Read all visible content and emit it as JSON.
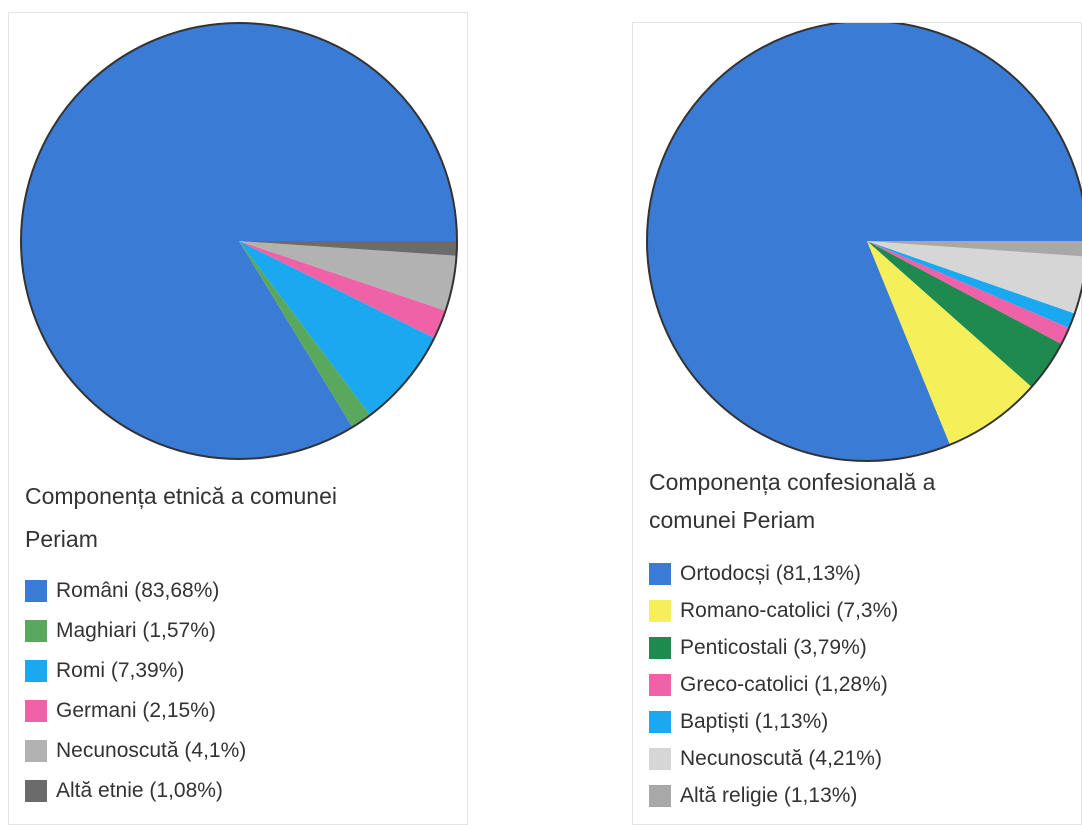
{
  "chart_data": [
    {
      "type": "pie",
      "title": "Componența etnică a comunei Periam",
      "categories": [
        "Români (83,68%)",
        "Maghiari (1,57%)",
        "Romi (7,39%)",
        "Germani (2,15%)",
        "Necunoscută (4,1%)",
        "Altă etnie (1,08%)"
      ],
      "values": [
        83.68,
        1.57,
        7.39,
        2.15,
        4.1,
        1.08
      ],
      "colors": [
        "#3a7bd5",
        "#5aa75e",
        "#1aa8f0",
        "#f062a8",
        "#b2b2b2",
        "#6b6b6b"
      ]
    },
    {
      "type": "pie",
      "title": "Componența confesională a comunei Periam",
      "categories": [
        "Ortodocși (81,13%)",
        "Romano-catolici (7,3%)",
        "Penticostali (3,79%)",
        "Greco-catolici (1,28%)",
        "Baptiști (1,13%)",
        "Necunoscută (4,21%)",
        "Altă religie (1,13%)"
      ],
      "values": [
        81.13,
        7.3,
        3.79,
        1.28,
        1.13,
        4.21,
        1.13
      ],
      "colors": [
        "#3a7bd5",
        "#f5f05a",
        "#1e8a50",
        "#f062a8",
        "#1aa8f0",
        "#d6d6d6",
        "#a8a8a8"
      ]
    }
  ]
}
